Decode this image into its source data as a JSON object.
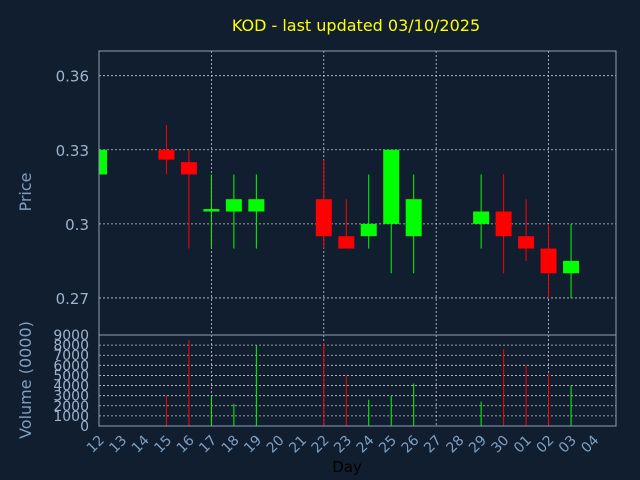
{
  "chart_data": {
    "type": "candlestick",
    "title": "KOD - last updated 03/10/2025",
    "xlabel": "Day",
    "ylabel": "Price",
    "volume_ylabel": "Volume (0000)",
    "ylim": [
      0.255,
      0.37
    ],
    "yticks": [
      "0.36",
      "0.33",
      "0.3",
      "0.27"
    ],
    "volume_ylim": [
      0,
      9000
    ],
    "volume_ticks": [
      "0",
      "1000",
      "2000",
      "3000",
      "4000",
      "5000",
      "6000",
      "7000",
      "8000",
      "9000"
    ],
    "grid": true,
    "colors": {
      "up": "#00ff00",
      "down": "#ff0000",
      "title": "#ffff00",
      "background": "#111e30"
    },
    "categories": [
      "12",
      "13",
      "14",
      "15",
      "16",
      "17",
      "18",
      "19",
      "20",
      "21",
      "22",
      "23",
      "24",
      "25",
      "26",
      "27",
      "28",
      "29",
      "30",
      "01",
      "02",
      "03",
      "04"
    ],
    "candles": [
      {
        "day": "12",
        "open": 0.32,
        "close": 0.33,
        "high": 0.33,
        "low": 0.32,
        "volume": 0
      },
      {
        "day": "15",
        "open": 0.33,
        "close": 0.326,
        "high": 0.34,
        "low": 0.32,
        "volume": 3000
      },
      {
        "day": "16",
        "open": 0.325,
        "close": 0.32,
        "high": 0.33,
        "low": 0.29,
        "volume": 8500
      },
      {
        "day": "17",
        "open": 0.305,
        "close": 0.306,
        "high": 0.32,
        "low": 0.29,
        "volume": 3000
      },
      {
        "day": "18",
        "open": 0.305,
        "close": 0.31,
        "high": 0.32,
        "low": 0.29,
        "volume": 2200
      },
      {
        "day": "19",
        "open": 0.305,
        "close": 0.31,
        "high": 0.32,
        "low": 0.29,
        "volume": 8000
      },
      {
        "day": "22",
        "open": 0.31,
        "close": 0.295,
        "high": 0.326,
        "low": 0.29,
        "volume": 8200
      },
      {
        "day": "23",
        "open": 0.295,
        "close": 0.29,
        "high": 0.31,
        "low": 0.29,
        "volume": 5000
      },
      {
        "day": "24",
        "open": 0.295,
        "close": 0.3,
        "high": 0.32,
        "low": 0.29,
        "volume": 2600
      },
      {
        "day": "25",
        "open": 0.3,
        "close": 0.33,
        "high": 0.33,
        "low": 0.28,
        "volume": 3000
      },
      {
        "day": "26",
        "open": 0.295,
        "close": 0.31,
        "high": 0.32,
        "low": 0.28,
        "volume": 4200
      },
      {
        "day": "29",
        "open": 0.3,
        "close": 0.305,
        "high": 0.32,
        "low": 0.29,
        "volume": 2400
      },
      {
        "day": "30",
        "open": 0.305,
        "close": 0.295,
        "high": 0.32,
        "low": 0.28,
        "volume": 7600
      },
      {
        "day": "01",
        "open": 0.295,
        "close": 0.29,
        "high": 0.31,
        "low": 0.285,
        "volume": 6000
      },
      {
        "day": "02",
        "open": 0.29,
        "close": 0.28,
        "high": 0.3,
        "low": 0.27,
        "volume": 5200
      },
      {
        "day": "03",
        "open": 0.28,
        "close": 0.285,
        "high": 0.3,
        "low": 0.27,
        "volume": 4000
      }
    ]
  }
}
